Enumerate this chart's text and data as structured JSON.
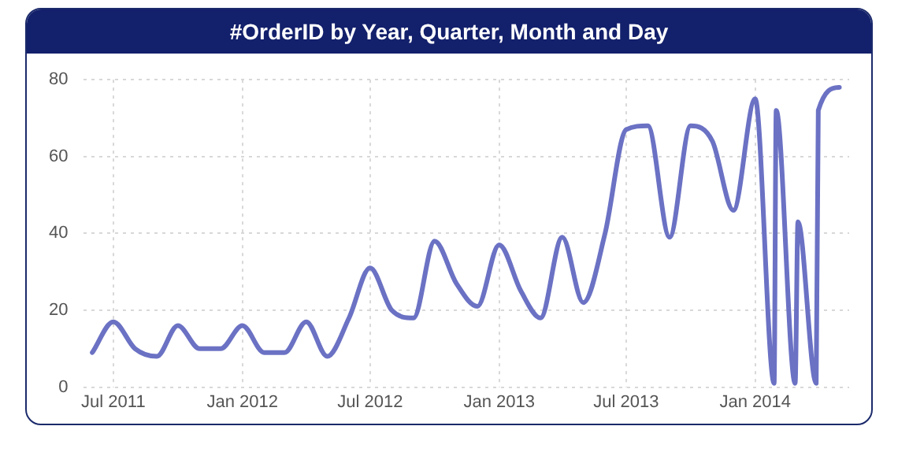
{
  "chart_data": {
    "type": "line",
    "title": "#OrderID by Year, Quarter, Month and Day",
    "x": [
      "2011-06-01",
      "2011-07-01",
      "2011-08-01",
      "2011-09-01",
      "2011-10-01",
      "2011-11-01",
      "2011-12-01",
      "2012-01-01",
      "2012-02-01",
      "2012-03-01",
      "2012-04-01",
      "2012-05-01",
      "2012-06-01",
      "2012-07-01",
      "2012-08-01",
      "2012-09-01",
      "2012-10-01",
      "2012-11-01",
      "2012-12-01",
      "2013-01-01",
      "2013-02-01",
      "2013-03-01",
      "2013-04-01",
      "2013-05-01",
      "2013-06-01",
      "2013-07-01",
      "2013-08-01",
      "2013-09-01",
      "2013-10-01",
      "2013-11-01",
      "2013-12-01",
      "2014-01-01",
      "2014-01-28",
      "2014-01-31",
      "2014-02-27",
      "2014-03-03",
      "2014-03-29",
      "2014-04-01",
      "2014-05-01"
    ],
    "series": [
      {
        "color": "#6b72c4",
        "values": [
          9,
          17,
          10,
          8,
          16,
          10,
          10,
          16,
          9,
          9,
          17,
          8,
          18,
          31,
          20,
          18,
          38,
          27,
          21,
          37,
          25,
          18,
          39,
          22,
          40,
          67,
          68,
          39,
          68,
          64,
          46,
          75,
          1,
          72,
          1,
          43,
          1,
          72,
          78
        ]
      }
    ],
    "xlim": [
      "2011-05-20",
      "2014-05-15"
    ],
    "xticks": [
      {
        "value": "2011-07-01",
        "label": "Jul 2011"
      },
      {
        "value": "2012-01-01",
        "label": "Jan 2012"
      },
      {
        "value": "2012-07-01",
        "label": "Jul 2012"
      },
      {
        "value": "2013-01-01",
        "label": "Jan 2013"
      },
      {
        "value": "2013-07-01",
        "label": "Jul 2013"
      },
      {
        "value": "2014-01-01",
        "label": "Jan 2014"
      }
    ],
    "ylim": [
      0,
      80
    ],
    "yticks": [
      0,
      20,
      40,
      60,
      80
    ],
    "grid": true,
    "marker": "none",
    "line_style": "solid"
  }
}
